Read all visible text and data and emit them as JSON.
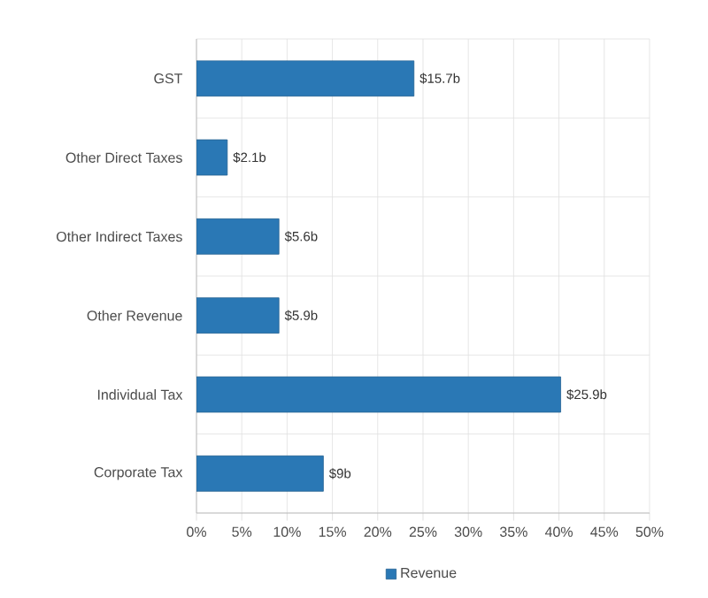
{
  "chart_data": {
    "type": "bar",
    "orientation": "horizontal",
    "categories": [
      "GST",
      "Other Direct Taxes",
      "Other Indirect Taxes",
      "Other Revenue",
      "Individual Tax",
      "Corporate Tax"
    ],
    "series": [
      {
        "name": "Revenue",
        "color": "#2a78b5",
        "values": [
          24,
          3.4,
          9.1,
          9.1,
          40.2,
          14
        ]
      }
    ],
    "annotations": [
      {
        "text": "$15.7b",
        "x": 24,
        "y": "GST"
      },
      {
        "text": "$2.1b",
        "x": 3.4,
        "y": "Other Direct Taxes"
      },
      {
        "text": "$5.6b",
        "x": 9.1,
        "y": "Other Indirect Taxes"
      },
      {
        "text": "$5.9b",
        "x": 9.1,
        "y": "Other Revenue"
      },
      {
        "text": "$25.9b",
        "x": 40.2,
        "y": "Individual Tax"
      },
      {
        "text": "$9b",
        "x": 14,
        "y": "Corporate Tax"
      }
    ],
    "xlim": [
      0,
      50
    ],
    "xticks": [
      {
        "value": 0,
        "label": "0%"
      },
      {
        "value": 5,
        "label": "5%"
      },
      {
        "value": 10,
        "label": "10%"
      },
      {
        "value": 15,
        "label": "15%"
      },
      {
        "value": 20,
        "label": "20%"
      },
      {
        "value": 25,
        "label": "25%"
      },
      {
        "value": 30,
        "label": "30%"
      },
      {
        "value": 35,
        "label": "35%"
      },
      {
        "value": 40,
        "label": "40%"
      },
      {
        "value": 45,
        "label": "45%"
      },
      {
        "value": 50,
        "label": "50%"
      }
    ],
    "grid": true,
    "legend": "bottom"
  }
}
